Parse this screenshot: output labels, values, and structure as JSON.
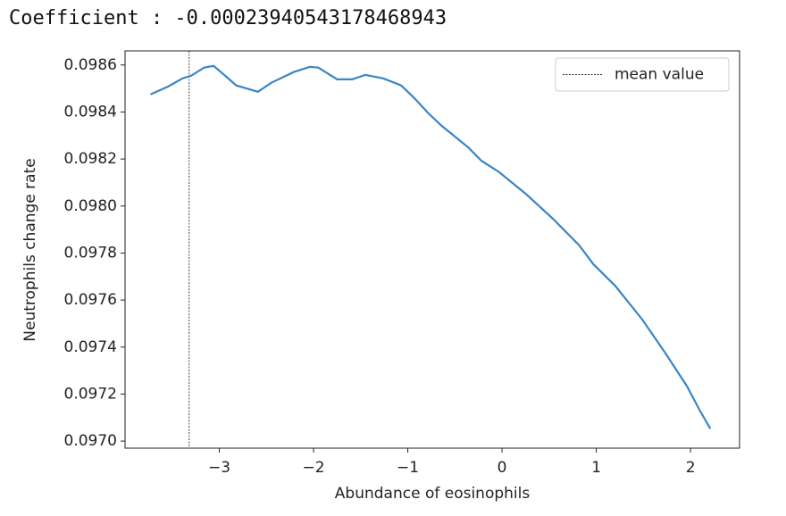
{
  "output_text": "Coefficient : -0.00023940543178468943",
  "chart_data": {
    "type": "line",
    "xlabel": "Abundance of eosinophils",
    "ylabel": "Neutrophils change rate",
    "xlim": [
      -4.0,
      2.52
    ],
    "ylim": [
      0.09697,
      0.09866
    ],
    "xticks": [
      {
        "value": -3,
        "label": "−3"
      },
      {
        "value": -2,
        "label": "−2"
      },
      {
        "value": -1,
        "label": "−1"
      },
      0,
      1,
      2
    ],
    "yticks": [
      {
        "value": 0.097,
        "label": "0.0970"
      },
      0.0972,
      0.0974,
      0.0976,
      0.0978,
      {
        "value": 0.098,
        "label": "0.0980"
      },
      0.0982,
      0.0984,
      0.0986
    ],
    "grid": false,
    "legend": "upper right",
    "mean_line": {
      "name": "mean value",
      "x": -3.32,
      "color": "#333333"
    },
    "series": [
      {
        "color": "#3a86c4",
        "x": [
          -3.73,
          -3.54,
          -3.39,
          -3.3,
          -3.16,
          -3.06,
          -2.96,
          -2.82,
          -2.59,
          -2.45,
          -2.21,
          -2.04,
          -1.95,
          -1.75,
          -1.59,
          -1.45,
          -1.26,
          -1.07,
          -0.93,
          -0.79,
          -0.64,
          -0.36,
          -0.22,
          -0.03,
          0.26,
          0.54,
          0.82,
          0.97,
          1.2,
          1.49,
          1.73,
          1.96,
          2.1,
          2.21
        ],
        "values": [
          0.098475,
          0.098509,
          0.098543,
          0.098554,
          0.098589,
          0.098596,
          0.098562,
          0.098513,
          0.098486,
          0.098524,
          0.09857,
          0.098592,
          0.098589,
          0.098539,
          0.098539,
          0.098558,
          0.098543,
          0.098513,
          0.098459,
          0.098398,
          0.098341,
          0.09825,
          0.098193,
          0.098144,
          0.098049,
          0.097946,
          0.097832,
          0.097752,
          0.097661,
          0.097516,
          0.097376,
          0.097235,
          0.097129,
          0.097053
        ]
      }
    ]
  }
}
